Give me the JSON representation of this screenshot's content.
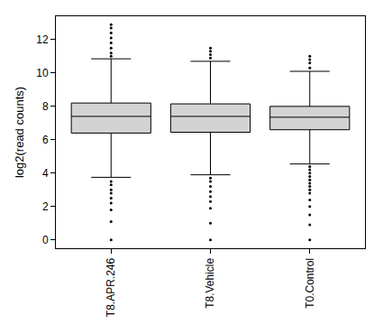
{
  "chart_data": {
    "type": "box",
    "y_label": "log2(read counts)",
    "categories": [
      "T8.APR.246",
      "T8.Vehicle",
      "T0.Control"
    ],
    "boxes": [
      {
        "lowerfence": 3.75,
        "q1": 6.4,
        "median": 7.4,
        "q3": 8.2,
        "upperfence": 10.85,
        "outliers": [
          11.0,
          11.2,
          11.5,
          11.8,
          12.1,
          12.4,
          12.7,
          12.9,
          3.5,
          3.3,
          3.0,
          2.8,
          2.5,
          2.2,
          1.8,
          1.1,
          0
        ]
      },
      {
        "lowerfence": 3.9,
        "q1": 6.45,
        "median": 7.4,
        "q3": 8.15,
        "upperfence": 10.7,
        "outliers": [
          10.9,
          11.1,
          11.3,
          11.5,
          3.7,
          3.5,
          3.2,
          2.9,
          2.6,
          2.3,
          1.9,
          1.0,
          0
        ]
      },
      {
        "lowerfence": 4.55,
        "q1": 6.6,
        "median": 7.35,
        "q3": 8.0,
        "upperfence": 10.1,
        "outliers": [
          10.3,
          10.6,
          10.8,
          11.0,
          4.4,
          4.2,
          4.0,
          3.8,
          3.6,
          3.4,
          3.2,
          3.0,
          2.8,
          2.4,
          2.0,
          1.5,
          0.9,
          0
        ]
      }
    ],
    "color": "#d3d3d3",
    "ylim": [
      -0.5,
      13.4
    ],
    "yticks": [
      0,
      2,
      4,
      6,
      8,
      10,
      12
    ],
    "grid": false
  }
}
